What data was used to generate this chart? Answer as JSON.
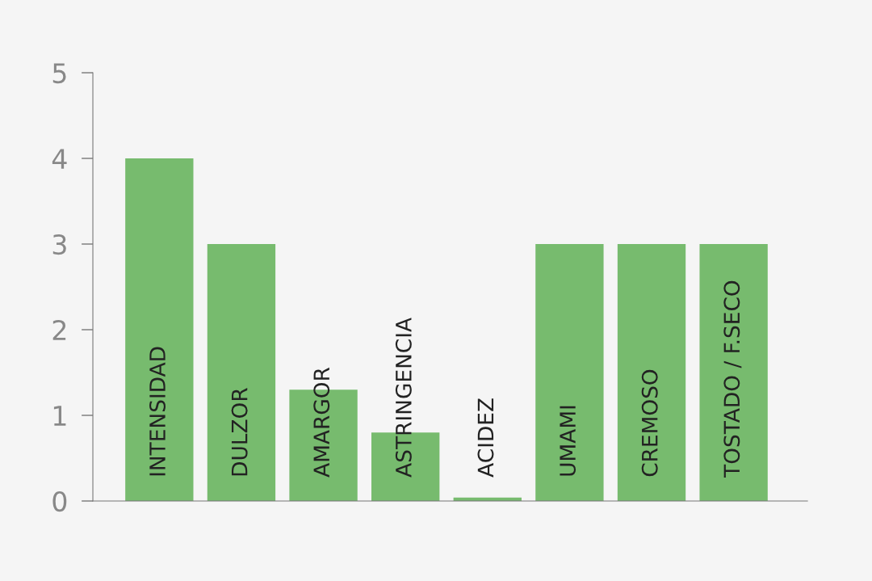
{
  "chart_data": {
    "type": "bar",
    "categories": [
      "INTENSIDAD",
      "DULZOR",
      "AMARGOR",
      "ASTRINGENCIA",
      "ACIDEZ",
      "UMAMI",
      "CREMOSO",
      "TOSTADO / F.SECO"
    ],
    "values": [
      4,
      3,
      1.3,
      0.8,
      0.04,
      3,
      3,
      3
    ],
    "color": "#77bb6e",
    "ylim": [
      0,
      5
    ],
    "yticks": [
      0,
      1,
      2,
      3,
      4,
      5
    ],
    "grid": false
  }
}
